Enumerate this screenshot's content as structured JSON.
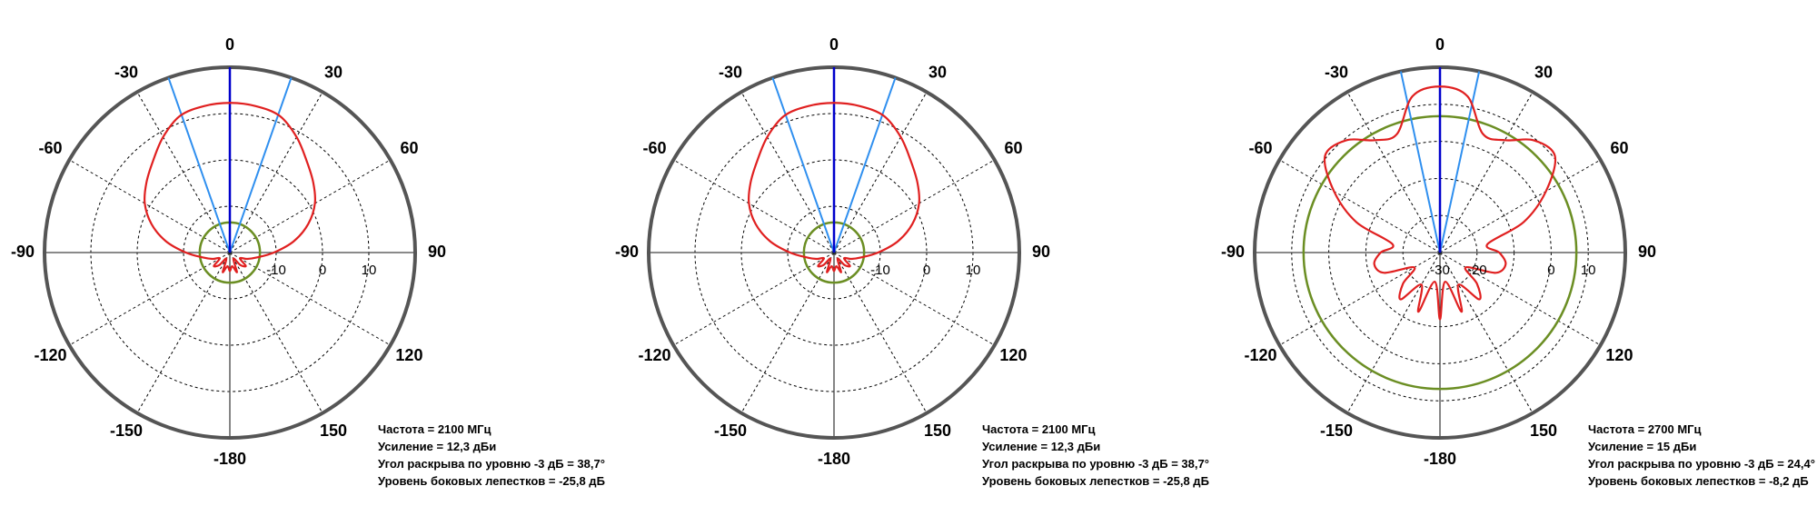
{
  "chart_data": [
    {
      "type": "polar",
      "thetaticks": [
        0,
        30,
        60,
        90,
        120,
        150,
        -180,
        -150,
        -120,
        -90,
        -60,
        -30
      ],
      "rlim": [
        -20,
        20
      ],
      "rticks": [
        -10,
        0,
        10
      ],
      "rgrid": [
        -10,
        0,
        10
      ],
      "beam": {
        "center": 0,
        "center_color": "#0000cc",
        "edges": [
          -19.35,
          19.35
        ],
        "edge_color": "#2f8fef"
      },
      "sidelobe_level": -13.5,
      "sidelobe_color": "#6b8e23",
      "pattern": {
        "color": "#e02020",
        "theta": [
          -180,
          -170,
          -160,
          -150,
          -140,
          -130,
          -120,
          -110,
          -100,
          -90,
          -80,
          -70,
          -60,
          -50,
          -40,
          -30,
          -20,
          -10,
          0,
          10,
          20,
          30,
          40,
          50,
          60,
          70,
          80,
          90,
          100,
          110,
          120,
          130,
          140,
          150,
          160,
          170
        ],
        "r": [
          -16,
          -17,
          -15.5,
          -18.5,
          -16.5,
          -15.5,
          -17.5,
          -16,
          -14,
          -10.5,
          -6,
          -2,
          1.2,
          3.5,
          5.8,
          8.8,
          11.4,
          12.1,
          12.3,
          12.1,
          11.4,
          8.8,
          5.8,
          3.5,
          1.2,
          -2,
          -6,
          -10.5,
          -14,
          -16,
          -17.5,
          -15.5,
          -16.5,
          -18.5,
          -15.5,
          -17
        ]
      },
      "annotations": [
        "Частота = 2100 МГц",
        "Усиление = 12,3 дБи",
        "Угол раскрыва по уровню -3 дБ = 38,7°",
        "Уровень боковых лепестков = -25,8 дБ"
      ]
    },
    {
      "type": "polar",
      "thetaticks": [
        0,
        30,
        60,
        90,
        120,
        150,
        -180,
        -150,
        -120,
        -90,
        -60,
        -30
      ],
      "rlim": [
        -20,
        20
      ],
      "rticks": [
        -10,
        0,
        10
      ],
      "rgrid": [
        -10,
        0,
        10
      ],
      "beam": {
        "center": 0,
        "center_color": "#0000cc",
        "edges": [
          -19.35,
          19.35
        ],
        "edge_color": "#2f8fef"
      },
      "sidelobe_level": -13.5,
      "sidelobe_color": "#6b8e23",
      "pattern": {
        "color": "#e02020",
        "theta": [
          -180,
          -170,
          -160,
          -150,
          -140,
          -130,
          -120,
          -110,
          -100,
          -90,
          -80,
          -70,
          -60,
          -50,
          -40,
          -30,
          -20,
          -10,
          0,
          10,
          20,
          30,
          40,
          50,
          60,
          70,
          80,
          90,
          100,
          110,
          120,
          130,
          140,
          150,
          160,
          170
        ],
        "r": [
          -16,
          -17,
          -15.5,
          -18.5,
          -16.5,
          -15.5,
          -17.5,
          -16,
          -14,
          -10.5,
          -6,
          -2,
          1.2,
          3.5,
          5.8,
          8.8,
          11.4,
          12.1,
          12.3,
          12.1,
          11.4,
          8.8,
          5.8,
          3.5,
          1.2,
          -2,
          -6,
          -10.5,
          -14,
          -16,
          -17.5,
          -15.5,
          -16.5,
          -18.5,
          -15.5,
          -17
        ]
      },
      "annotations": [
        "Частота = 2100 МГц",
        "Усиление = 12,3 дБи",
        "Угол раскрыва по уровню -3 дБ = 38,7°",
        "Уровень боковых лепестков = -25,8 дБ"
      ]
    },
    {
      "type": "polar",
      "thetaticks": [
        0,
        30,
        60,
        90,
        120,
        150,
        -180,
        -150,
        -120,
        -90,
        -60,
        -30
      ],
      "rlim": [
        -30,
        20
      ],
      "rticks": [
        -30,
        -20,
        0,
        10
      ],
      "rgrid": [
        -20,
        -10,
        0,
        10
      ],
      "beam": {
        "center": 0,
        "center_color": "#0000cc",
        "edges": [
          -12.2,
          12.2
        ],
        "edge_color": "#2f8fef"
      },
      "sidelobe_level": 6.8,
      "sidelobe_color": "#6b8e23",
      "pattern": {
        "color": "#e02020",
        "theta": [
          -180,
          -170,
          -160,
          -150,
          -140,
          -130,
          -120,
          -110,
          -100,
          -90,
          -80,
          -70,
          -60,
          -50,
          -40,
          -30,
          -20,
          -10,
          0,
          10,
          20,
          30,
          40,
          50,
          60,
          70,
          80,
          90,
          100,
          110,
          120,
          130,
          140,
          150,
          160,
          170
        ],
        "r": [
          -12,
          -22,
          -13,
          -20,
          -13.5,
          -17,
          -22,
          -14,
          -12,
          -14,
          -17,
          -6,
          3,
          10.5,
          9.5,
          5,
          4,
          12.8,
          14.8,
          12.8,
          4,
          5,
          9.5,
          10.5,
          3,
          -6,
          -17,
          -14,
          -12,
          -14,
          -22,
          -17,
          -13.5,
          -20,
          -13,
          -22
        ]
      },
      "annotations": [
        "Частота = 2700 МГц",
        "Усиление = 15 дБи",
        "Угол раскрыва по уровню -3 дБ = 24,4°",
        "Уровень боковых лепестков = -8,2 дБ"
      ]
    }
  ]
}
